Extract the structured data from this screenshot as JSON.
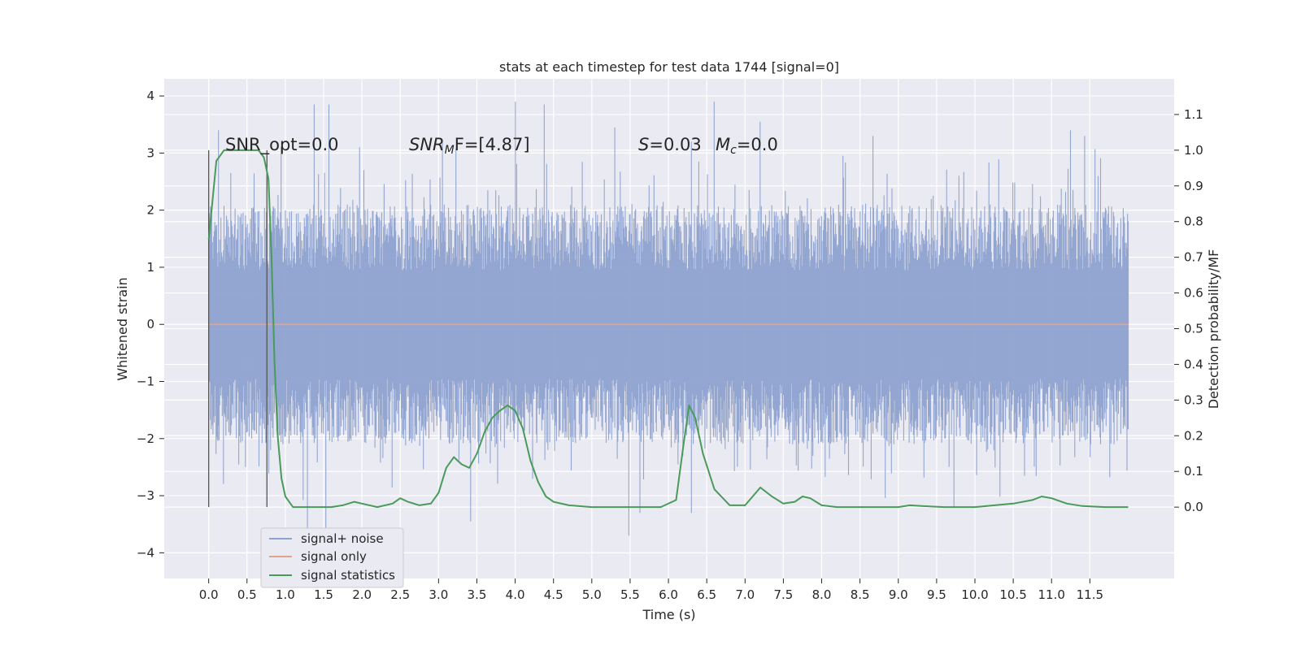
{
  "chart_data": {
    "type": "line",
    "title": "stats at each timestep for test data 1744 [signal=0]",
    "xlabel": "Time (s)",
    "ylabel": "Whitened strain",
    "ylabel_right": "Detection probability/MF",
    "xlim": [
      -0.58,
      12.6
    ],
    "ylim": [
      -4.45,
      4.3
    ],
    "ylim_right": [
      -0.2,
      1.2
    ],
    "x_ticks": [
      "0.0",
      "0.5",
      "1.0",
      "1.5",
      "2.0",
      "2.5",
      "3.0",
      "3.5",
      "4.0",
      "4.5",
      "5.0",
      "5.5",
      "6.0",
      "6.5",
      "7.0",
      "7.5",
      "8.0",
      "8.5",
      "9.0",
      "9.5",
      "10.0",
      "10.5",
      "11.0",
      "11.5"
    ],
    "y_ticks": [
      "4",
      "3",
      "2",
      "1",
      "0",
      "−1",
      "−2",
      "−3",
      "−4"
    ],
    "y_ticks_right": [
      "1.1",
      "1.0",
      "0.9",
      "0.8",
      "0.7",
      "0.6",
      "0.5",
      "0.4",
      "0.3",
      "0.2",
      "0.1",
      "0.0"
    ],
    "grid": true,
    "legend_position": "lower-left",
    "annotations": {
      "snr_opt": "SNR_opt=0.0",
      "snr_mf_main": "SNR",
      "snr_mf_sub": "M",
      "snr_mf_rest": "F=[4.87]",
      "s_main": "S",
      "s_rest": "=0.03",
      "mc_main": "M",
      "mc_sub": "c",
      "mc_rest": "=0.0"
    },
    "vlines_x": [
      0.0,
      0.76
    ],
    "series": [
      {
        "name": "signal+ noise",
        "color": "#8ea2cf",
        "x_range": [
          0.0,
          12.0
        ],
        "band_low": -2.1,
        "band_high": 2.1,
        "peaks": [
          [
            0.13,
            3.4
          ],
          [
            1.38,
            3.85
          ],
          [
            1.57,
            3.85
          ],
          [
            1.97,
            3.1
          ],
          [
            3.05,
            3.2
          ],
          [
            4.0,
            3.9
          ],
          [
            4.38,
            3.85
          ],
          [
            5.3,
            3.45
          ],
          [
            6.3,
            3.2
          ],
          [
            6.6,
            3.9
          ],
          [
            7.2,
            3.55
          ],
          [
            8.67,
            3.3
          ],
          [
            11.25,
            3.4
          ],
          [
            11.43,
            3.3
          ]
        ],
        "troughs": [
          [
            1.29,
            -3.6
          ],
          [
            1.53,
            -3.75
          ],
          [
            3.42,
            -3.45
          ],
          [
            5.48,
            -3.7
          ],
          [
            5.63,
            -3.3
          ],
          [
            6.3,
            -3.3
          ],
          [
            9.73,
            -3.2
          ]
        ]
      },
      {
        "name": "signal only",
        "color": "#e2a38b",
        "x": [
          0.0,
          12.0
        ],
        "y": [
          0.0,
          0.0
        ]
      },
      {
        "name": "signal statistics",
        "color": "#4a9a5a",
        "axis": "right",
        "x": [
          0.0,
          0.1,
          0.2,
          0.3,
          0.5,
          0.65,
          0.72,
          0.78,
          0.82,
          0.86,
          0.9,
          0.95,
          1.0,
          1.1,
          1.3,
          1.6,
          1.75,
          1.9,
          2.0,
          2.2,
          2.4,
          2.5,
          2.6,
          2.75,
          2.9,
          3.0,
          3.1,
          3.2,
          3.3,
          3.4,
          3.5,
          3.6,
          3.7,
          3.8,
          3.9,
          4.0,
          4.1,
          4.2,
          4.3,
          4.4,
          4.5,
          4.7,
          5.0,
          5.5,
          5.9,
          6.1,
          6.2,
          6.27,
          6.35,
          6.45,
          6.6,
          6.8,
          7.0,
          7.1,
          7.2,
          7.35,
          7.5,
          7.65,
          7.75,
          7.85,
          8.0,
          8.2,
          8.6,
          9.0,
          9.15,
          9.3,
          9.6,
          10.0,
          10.5,
          10.75,
          10.87,
          11.0,
          11.2,
          11.4,
          11.7,
          12.0
        ],
        "y": [
          0.75,
          0.97,
          1.0,
          1.0,
          1.0,
          1.0,
          0.98,
          0.92,
          0.7,
          0.4,
          0.2,
          0.08,
          0.03,
          0.0,
          0.0,
          0.0,
          0.005,
          0.015,
          0.01,
          0.0,
          0.01,
          0.025,
          0.015,
          0.005,
          0.01,
          0.04,
          0.11,
          0.14,
          0.12,
          0.11,
          0.15,
          0.21,
          0.25,
          0.27,
          0.285,
          0.27,
          0.22,
          0.13,
          0.07,
          0.03,
          0.015,
          0.005,
          0.0,
          0.0,
          0.0,
          0.02,
          0.18,
          0.285,
          0.25,
          0.15,
          0.05,
          0.005,
          0.005,
          0.03,
          0.055,
          0.03,
          0.01,
          0.015,
          0.03,
          0.025,
          0.005,
          0.0,
          0.0,
          0.0,
          0.005,
          0.003,
          0.0,
          0.0,
          0.01,
          0.02,
          0.03,
          0.025,
          0.01,
          0.003,
          0.0,
          0.0
        ]
      }
    ]
  }
}
